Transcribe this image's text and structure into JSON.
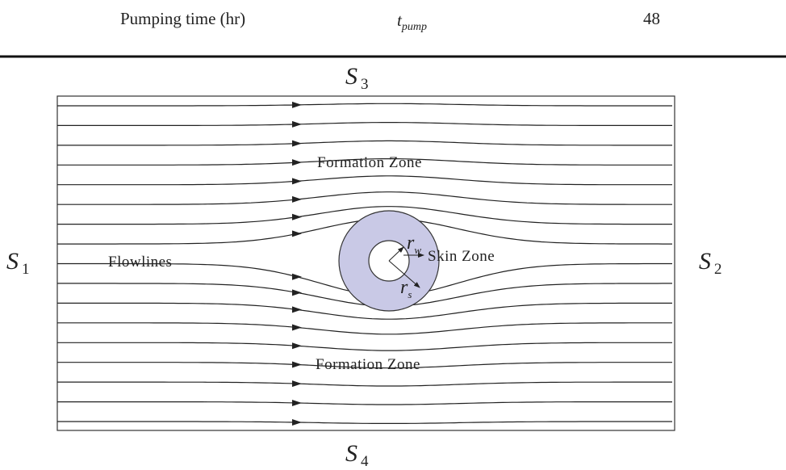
{
  "table": {
    "rows": [
      {
        "label": "Pumping time (hr)",
        "symbol": "t",
        "symbol_sub": "pump",
        "value": 48
      }
    ]
  },
  "diagram": {
    "boundaries": [
      {
        "symbol": "S",
        "sub": "3"
      },
      {
        "symbol": "S",
        "sub": "4"
      },
      {
        "symbol": "S",
        "sub": "1"
      },
      {
        "symbol": "S",
        "sub": "2"
      }
    ],
    "labels": {
      "formation_top": "Formation Zone",
      "formation_bottom": "Formation Zone",
      "flowlines": "Flowlines",
      "skin": "Skin Zone"
    },
    "radii": [
      {
        "symbol": "r",
        "sub": "w"
      },
      {
        "symbol": "r",
        "sub": "s"
      }
    ]
  }
}
